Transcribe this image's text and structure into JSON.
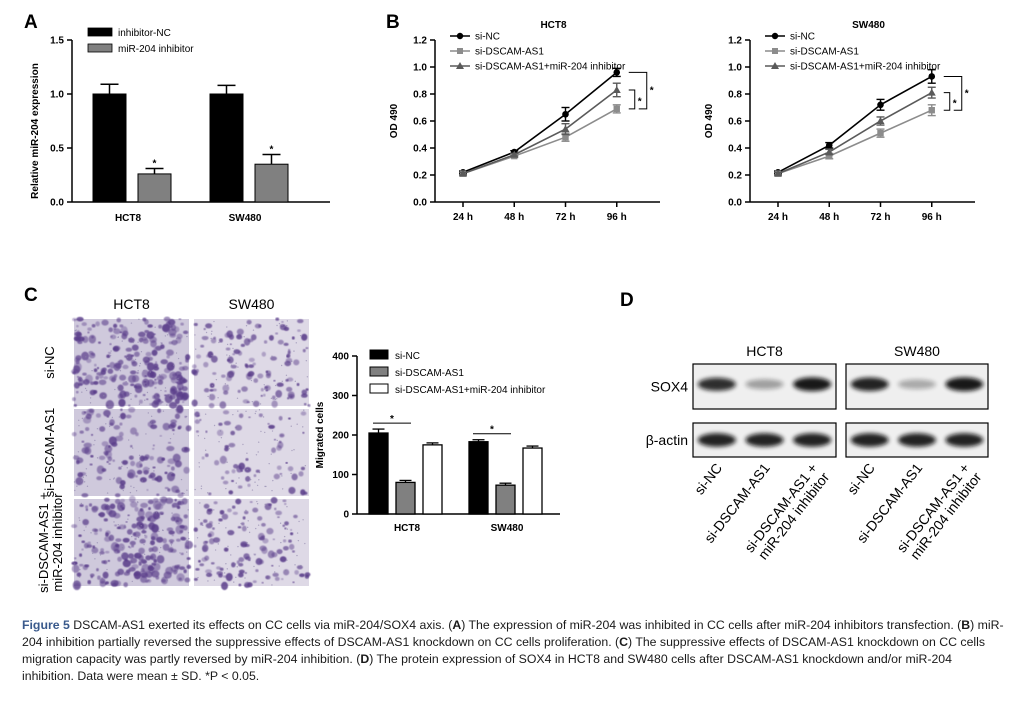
{
  "panels": {
    "a": "A",
    "b": "B",
    "c": "C",
    "d": "D"
  },
  "chart_data": [
    {
      "id": "A",
      "type": "bar",
      "categories": [
        "HCT8",
        "SW480"
      ],
      "series": [
        {
          "name": "inhibitor-NC",
          "values": [
            1.0,
            1.0
          ],
          "errors": [
            0.09,
            0.08
          ],
          "color": "#000000"
        },
        {
          "name": "miR-204 inhibitor",
          "values": [
            0.26,
            0.35
          ],
          "errors": [
            0.05,
            0.09
          ],
          "color": "#808080"
        }
      ],
      "ylabel": "Relative miR-204 expression",
      "ylim": [
        0,
        1.5
      ],
      "yticks": [
        "0.0",
        "0.5",
        "1.0",
        "1.5"
      ],
      "annotations": [
        "*",
        "*"
      ]
    },
    {
      "id": "B1",
      "type": "line",
      "title": "HCT8",
      "x": [
        "24 h",
        "48 h",
        "72 h",
        "96 h"
      ],
      "series": [
        {
          "name": "si-NC",
          "values": [
            0.22,
            0.37,
            0.65,
            0.96
          ],
          "errors": [
            0.01,
            0.01,
            0.05,
            0.03
          ],
          "color": "#000000",
          "marker": "circle"
        },
        {
          "name": "si-DSCAM-AS1",
          "values": [
            0.21,
            0.34,
            0.48,
            0.69
          ],
          "errors": [
            0.01,
            0.01,
            0.03,
            0.03
          ],
          "color": "#8c8c8c",
          "marker": "square"
        },
        {
          "name": "si-DSCAM-AS1+miR-204 inhibitor",
          "values": [
            0.21,
            0.35,
            0.54,
            0.83
          ],
          "errors": [
            0.01,
            0.01,
            0.04,
            0.05
          ],
          "color": "#5a5a5a",
          "marker": "triangle"
        }
      ],
      "ylabel": "OD 490",
      "ylim": [
        0,
        1.2
      ],
      "yticks": [
        "0.0",
        "0.2",
        "0.4",
        "0.6",
        "0.8",
        "1.0",
        "1.2"
      ],
      "annotations": [
        "*",
        "*"
      ]
    },
    {
      "id": "B2",
      "type": "line",
      "title": "SW480",
      "x": [
        "24 h",
        "48 h",
        "72 h",
        "96 h"
      ],
      "series": [
        {
          "name": "si-NC",
          "values": [
            0.22,
            0.42,
            0.72,
            0.93
          ],
          "errors": [
            0.01,
            0.02,
            0.04,
            0.05
          ],
          "color": "#000000",
          "marker": "circle"
        },
        {
          "name": "si-DSCAM-AS1",
          "values": [
            0.21,
            0.34,
            0.51,
            0.68
          ],
          "errors": [
            0.01,
            0.02,
            0.03,
            0.04
          ],
          "color": "#8c8c8c",
          "marker": "square"
        },
        {
          "name": "si-DSCAM-AS1+miR-204 inhibitor",
          "values": [
            0.21,
            0.37,
            0.6,
            0.81
          ],
          "errors": [
            0.01,
            0.02,
            0.03,
            0.04
          ],
          "color": "#5a5a5a",
          "marker": "triangle"
        }
      ],
      "ylabel": "OD 490",
      "ylim": [
        0,
        1.2
      ],
      "yticks": [
        "0.0",
        "0.2",
        "0.4",
        "0.6",
        "0.8",
        "1.0",
        "1.2"
      ],
      "annotations": [
        "*",
        "*"
      ]
    },
    {
      "id": "C-bar",
      "type": "bar",
      "categories": [
        "HCT8",
        "SW480"
      ],
      "series": [
        {
          "name": "si-NC",
          "values": [
            205,
            183
          ],
          "errors": [
            10,
            5
          ],
          "color": "#000000"
        },
        {
          "name": "si-DSCAM-AS1",
          "values": [
            80,
            73
          ],
          "errors": [
            5,
            5
          ],
          "color": "#808080"
        },
        {
          "name": "si-DSCAM-AS1+miR-204 inhibitor",
          "values": [
            175,
            167
          ],
          "errors": [
            5,
            5
          ],
          "color": "#ffffff"
        }
      ],
      "ylabel": "Migrated cells",
      "ylim": [
        0,
        400
      ],
      "yticks": [
        "0",
        "100",
        "200",
        "300",
        "400"
      ],
      "annotations": [
        "*",
        "*"
      ]
    }
  ],
  "micrographs": {
    "columns": [
      "HCT8",
      "SW480"
    ],
    "rows": [
      "si-NC",
      "si-DSCAM-AS1",
      "si-DSCAM-AS1 +\nmiR-204 inhibitor"
    ],
    "stain_color": "#5a3d8a"
  },
  "western": {
    "groups": [
      "HCT8",
      "SW480"
    ],
    "proteins": [
      "SOX4",
      "β-actin"
    ],
    "lanes": [
      "si-NC",
      "si-DSCAM-AS1",
      "si-DSCAM-AS1 +\nmiR-204 inhibitor"
    ],
    "sox4_intensity": [
      [
        0.85,
        0.35,
        0.95
      ],
      [
        0.9,
        0.3,
        0.95
      ]
    ],
    "actin_intensity": [
      [
        0.9,
        0.9,
        0.9
      ],
      [
        0.9,
        0.9,
        0.9
      ]
    ]
  },
  "caption": {
    "title": "Figure 5",
    "parts": [
      {
        "t": " DSCAM-AS1 exerted its effects on CC cells via miR-204/SOX4 axis. ("
      },
      {
        "b": "A"
      },
      {
        "t": ") The expression of miR-204 was inhibited in CC cells after miR-204 inhibitors transfection. ("
      },
      {
        "b": "B"
      },
      {
        "t": ") miR-204 inhibition partially reversed the suppressive effects of DSCAM-AS1 knockdown on CC cells proliferation. ("
      },
      {
        "b": "C"
      },
      {
        "t": ") The suppressive effects of DSCAM-AS1 knockdown on CC cells migration capacity was partly reversed by miR-204 inhibition. ("
      },
      {
        "b": "D"
      },
      {
        "t": ") The protein expression of SOX4 in HCT8 and SW480 cells after DSCAM-AS1 knockdown and/or miR-204 inhibition. Data were mean ± SD. *P < 0.05."
      }
    ]
  }
}
